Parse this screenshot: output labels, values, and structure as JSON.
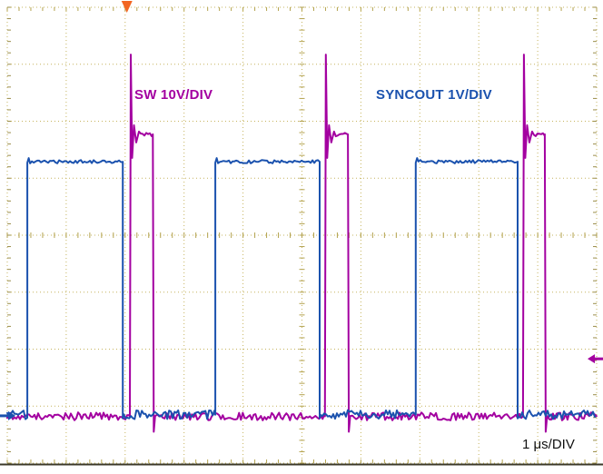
{
  "labels": {
    "sw": "SW 10V/DIV",
    "syncout": "SYNCOUT 1V/DIV",
    "timebase": "1 μs/DIV"
  },
  "chart_data": {
    "type": "line",
    "subtype": "oscilloscope-waveform",
    "timebase": "1 μs/DIV",
    "x_axis": {
      "divisions": 10,
      "units_per_div": "1 μs"
    },
    "y_axis": {
      "divisions": 8
    },
    "series": [
      {
        "name": "SW",
        "legend": "SW 10V/DIV",
        "volts_per_div": 10,
        "color": "#a300a0",
        "baseline_div": 0.82,
        "plateau_div": 5.77,
        "spike_peak_div": 7.17,
        "undershoot_div": 0.55,
        "noise_div": 0.07,
        "pulses_div": [
          {
            "rise": 2.08,
            "fall": 2.47
          },
          {
            "rise": 5.39,
            "fall": 5.78
          },
          {
            "rise": 8.75,
            "fall": 9.12
          }
        ]
      },
      {
        "name": "SYNCOUT",
        "legend": "SYNCOUT 1V/DIV",
        "volts_per_div": 1,
        "color": "#1b52ae",
        "baseline_div": 0.85,
        "high_div": 5.29,
        "noise_low_div": 0.08,
        "noise_high_div": 0.03,
        "highs_div": [
          {
            "rise": 0.34,
            "fall": 1.96
          },
          {
            "rise": 3.53,
            "fall": 5.3
          },
          {
            "rise": 6.93,
            "fall": 8.66
          }
        ]
      }
    ],
    "markers": [
      {
        "name": "trigger-marker",
        "edge": "top",
        "x_div": 2.03,
        "color": "#f26522"
      },
      {
        "name": "syncout-zero-marker",
        "edge": "left",
        "y_div": 0.83,
        "color": "#1b52ae"
      },
      {
        "name": "sw-ref-marker",
        "edge": "right",
        "y_div": 1.83,
        "color": "#a300a0"
      }
    ],
    "grid": {
      "color": "#c6b45f",
      "tick_color": "#b3a24e",
      "edge_tick_color": "#9a8d4a",
      "bottom_border_color": "#3b3828",
      "background": "#ffffff"
    }
  }
}
